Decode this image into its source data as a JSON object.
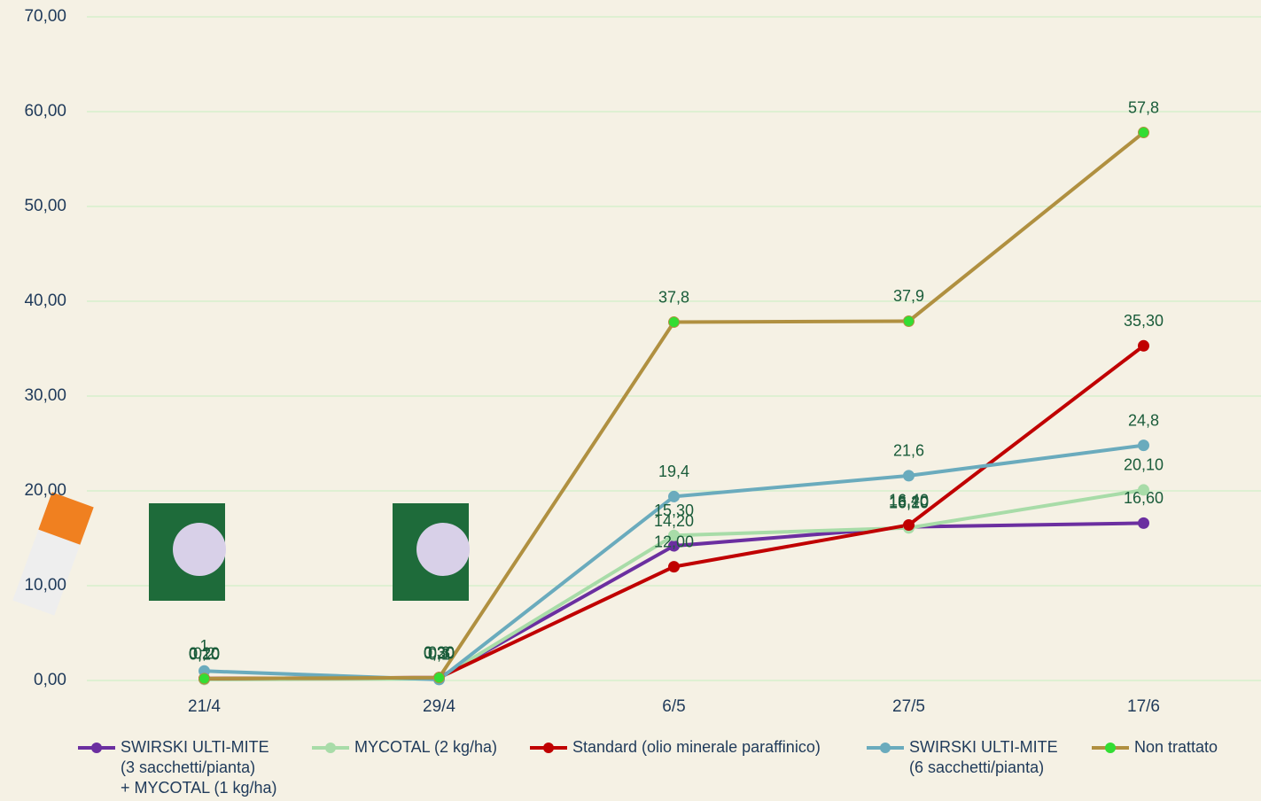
{
  "chart_data": {
    "type": "line",
    "categories": [
      "21/4",
      "29/4",
      "6/5",
      "27/5",
      "17/6"
    ],
    "ylim": [
      0,
      70
    ],
    "yticks": [
      {
        "value": 0,
        "label": "0,00"
      },
      {
        "value": 10,
        "label": "10,00"
      },
      {
        "value": 20,
        "label": "20,00"
      },
      {
        "value": 30,
        "label": "30,00"
      },
      {
        "value": 40,
        "label": "40,00"
      },
      {
        "value": 50,
        "label": "50,00"
      },
      {
        "value": 60,
        "label": "60,00"
      },
      {
        "value": 70,
        "label": "70,00"
      }
    ],
    "grid": true,
    "legend": "bottom",
    "series": [
      {
        "name": "SWIRSKI ULTI-MITE\n(3 sacchetti/pianta)\n+ MYCOTAL (1 kg/ha)",
        "color": "#6b2fa0",
        "values": [
          0.2,
          0.3,
          14.2,
          16.2,
          16.6
        ],
        "value_labels": [
          "0,20",
          "0,30",
          "14,20",
          "16,20",
          "16,60"
        ]
      },
      {
        "name": "MYCOTAL (2 kg/ha)",
        "color": "#a8dca8",
        "values": [
          0.1,
          0.2,
          15.3,
          16.1,
          20.1
        ],
        "value_labels": [
          "0,10",
          "0,20",
          "15,30",
          "16,10",
          "20,10"
        ]
      },
      {
        "name": "Standard (olio minerale paraffinico)",
        "color": "#c00000",
        "values": [
          0.2,
          0.3,
          12.0,
          16.4,
          35.3
        ],
        "value_labels": [
          "0,20",
          "0,30",
          "12,00",
          "16,40",
          "35,30"
        ]
      },
      {
        "name": "SWIRSKI ULTI-MITE\n(6 sacchetti/pianta)",
        "color": "#6aabbd",
        "values": [
          1,
          0.1,
          19.4,
          21.6,
          24.8
        ],
        "value_labels": [
          "1",
          "0,1",
          "19,4",
          "21,6",
          "24,8"
        ]
      },
      {
        "name": "Non trattato",
        "color": "#b09040",
        "marker_color": "#33dd33",
        "values": [
          0.2,
          0.3,
          37.8,
          37.9,
          57.8
        ],
        "value_labels": [
          "0,2",
          "0,3",
          "37,8",
          "37,9",
          "57,8"
        ]
      }
    ]
  }
}
